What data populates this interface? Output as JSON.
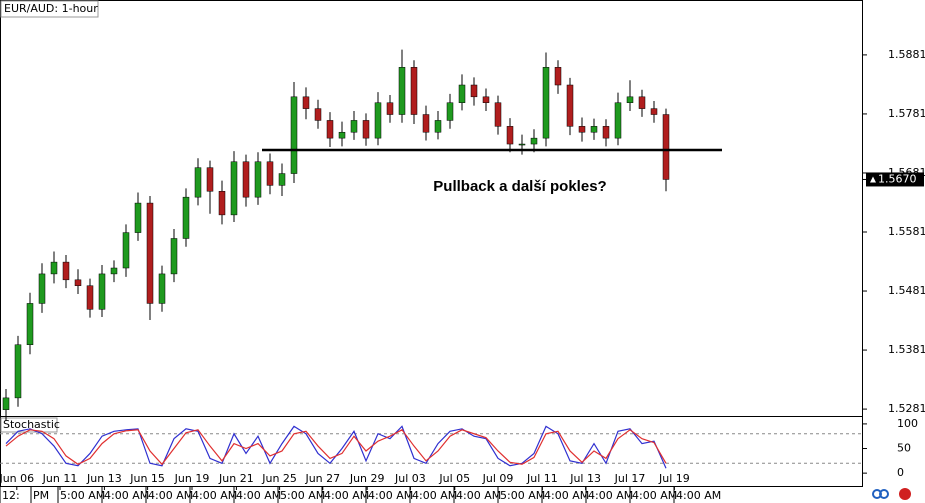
{
  "chart_data": [
    {
      "type": "candlestick",
      "title": "EUR/AUD: 1-hour",
      "annotation": "Pullback a další pokles?",
      "up_color": "#1f9a1f",
      "down_color": "#b01e1e",
      "open": [
        1.528,
        1.53,
        1.539,
        1.546,
        1.551,
        1.553,
        1.55,
        1.549,
        1.545,
        1.551,
        1.552,
        1.558,
        1.563,
        1.546,
        1.551,
        1.557,
        1.564,
        1.569,
        1.565,
        1.561,
        1.57,
        1.564,
        1.57,
        1.566,
        1.568,
        1.581,
        1.579,
        1.577,
        1.574,
        1.575,
        1.577,
        1.574,
        1.58,
        1.578,
        1.586,
        1.578,
        1.575,
        1.577,
        1.58,
        1.583,
        1.581,
        1.58,
        1.576,
        1.573,
        1.573,
        1.574,
        1.586,
        1.583,
        1.576,
        1.575,
        1.576,
        1.574,
        1.58,
        1.581,
        1.579,
        1.578
      ],
      "high": [
        1.5315,
        1.5405,
        1.5478,
        1.5528,
        1.5548,
        1.5542,
        1.5518,
        1.5502,
        1.5525,
        1.5533,
        1.5594,
        1.5648,
        1.5642,
        1.5524,
        1.5586,
        1.5655,
        1.5706,
        1.5702,
        1.5668,
        1.5718,
        1.5712,
        1.5716,
        1.5714,
        1.5697,
        1.5835,
        1.5826,
        1.5805,
        1.5784,
        1.5768,
        1.5786,
        1.5782,
        1.5818,
        1.5813,
        1.589,
        1.5872,
        1.5795,
        1.5786,
        1.5815,
        1.5848,
        1.5843,
        1.5824,
        1.5812,
        1.5774,
        1.5746,
        1.5755,
        1.5885,
        1.5872,
        1.5842,
        1.5775,
        1.5773,
        1.5772,
        1.5817,
        1.5838,
        1.5822,
        1.5803,
        1.579
      ],
      "low": [
        1.5262,
        1.5285,
        1.5374,
        1.5444,
        1.5494,
        1.5486,
        1.5476,
        1.5436,
        1.5437,
        1.5496,
        1.5505,
        1.5566,
        1.5432,
        1.5446,
        1.5496,
        1.5556,
        1.5626,
        1.5612,
        1.5594,
        1.5598,
        1.5624,
        1.5627,
        1.5645,
        1.5642,
        1.5664,
        1.5772,
        1.5756,
        1.5725,
        1.5726,
        1.5737,
        1.5727,
        1.5728,
        1.5766,
        1.5766,
        1.5764,
        1.5736,
        1.5738,
        1.5756,
        1.5787,
        1.5795,
        1.5786,
        1.5746,
        1.5716,
        1.5712,
        1.5716,
        1.5726,
        1.5815,
        1.5745,
        1.5734,
        1.5737,
        1.5726,
        1.5728,
        1.5786,
        1.5776,
        1.5766,
        1.565
      ],
      "close": [
        1.53,
        1.539,
        1.546,
        1.551,
        1.553,
        1.55,
        1.549,
        1.545,
        1.551,
        1.552,
        1.558,
        1.563,
        1.546,
        1.551,
        1.557,
        1.564,
        1.569,
        1.565,
        1.561,
        1.57,
        1.564,
        1.57,
        1.566,
        1.568,
        1.581,
        1.579,
        1.577,
        1.574,
        1.575,
        1.577,
        1.574,
        1.58,
        1.578,
        1.586,
        1.578,
        1.575,
        1.577,
        1.58,
        1.583,
        1.581,
        1.58,
        1.576,
        1.573,
        1.573,
        1.574,
        1.586,
        1.583,
        1.576,
        1.575,
        1.576,
        1.574,
        1.58,
        1.581,
        1.579,
        1.578,
        1.567
      ],
      "ylim": [
        1.5271,
        1.5974
      ],
      "yticks": [
        1.5281,
        1.5381,
        1.5481,
        1.5581,
        1.5681,
        1.5781,
        1.5881
      ],
      "hline": 1.572,
      "last_price": {
        "value": 1.567,
        "label": "1.5670"
      },
      "xticks": [
        {
          "value": 0.9,
          "label": "Jun 06"
        },
        {
          "value": 4.5,
          "label": "Jun 11"
        },
        {
          "value": 8.2,
          "label": "Jun 13"
        },
        {
          "value": 11.8,
          "label": "Jun 15"
        },
        {
          "value": 15.5,
          "label": "Jun 19"
        },
        {
          "value": 19.2,
          "label": "Jun 21"
        },
        {
          "value": 22.8,
          "label": "Jun 25"
        },
        {
          "value": 26.4,
          "label": "Jun 27"
        },
        {
          "value": 30.1,
          "label": "Jun 29"
        },
        {
          "value": 33.7,
          "label": "Jul 03"
        },
        {
          "value": 37.4,
          "label": "Jul 05"
        },
        {
          "value": 41,
          "label": "Jul 09"
        },
        {
          "value": 44.7,
          "label": "Jul 11"
        },
        {
          "value": 48.3,
          "label": "Jul 13"
        },
        {
          "value": 52,
          "label": "Jul 17"
        },
        {
          "value": 55.7,
          "label": "Jul 19"
        }
      ],
      "time_labels": [
        "12:",
        "PM",
        "5:00 AM",
        "4:00 AM",
        "4:00 AM",
        "4:00 AM",
        "4:00 AM",
        "5:00 AM",
        "4:00 AM",
        "4:00 AM",
        "4:00 AM",
        "4:00 AM",
        "5:00 AM",
        "4:00 AM",
        "4:00 AM",
        "4:00 AM",
        "4:00 AM"
      ]
    },
    {
      "type": "line",
      "title": "Stochastic",
      "series": [
        {
          "color": "#3030d0",
          "values": [
            60,
            85,
            90,
            80,
            55,
            20,
            15,
            40,
            75,
            85,
            88,
            90,
            20,
            15,
            70,
            90,
            85,
            30,
            20,
            80,
            40,
            75,
            20,
            60,
            95,
            80,
            40,
            20,
            50,
            85,
            25,
            80,
            70,
            95,
            30,
            20,
            60,
            85,
            90,
            75,
            70,
            30,
            15,
            20,
            40,
            95,
            80,
            25,
            20,
            60,
            20,
            85,
            90,
            60,
            65,
            10
          ]
        },
        {
          "color": "#e03030",
          "values": [
            55,
            75,
            88,
            85,
            70,
            35,
            18,
            30,
            60,
            80,
            86,
            88,
            45,
            18,
            50,
            82,
            88,
            55,
            25,
            60,
            50,
            60,
            35,
            45,
            80,
            85,
            55,
            30,
            40,
            75,
            45,
            65,
            75,
            88,
            55,
            25,
            45,
            75,
            88,
            80,
            72,
            45,
            22,
            18,
            32,
            80,
            85,
            45,
            22,
            45,
            30,
            70,
            88,
            70,
            62,
            20
          ]
        }
      ],
      "levels": [
        80,
        20
      ],
      "ylim": [
        -18,
        112
      ],
      "yticks": [
        0,
        50,
        100
      ]
    }
  ]
}
